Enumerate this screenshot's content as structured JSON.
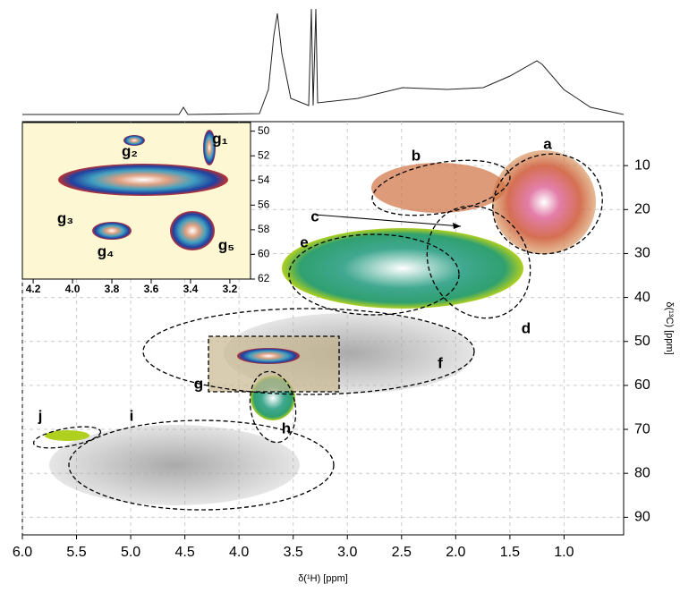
{
  "chart_data": [
    {
      "type": "hsqc",
      "xlabel": "δ(¹H) [ppm]",
      "ylabel": "δ(¹³C) [ppm]",
      "xlim": [
        6.0,
        0.45
      ],
      "ylim": [
        0,
        94
      ],
      "xticks": [
        {
          "value": 6.0,
          "label": "6.0"
        },
        5.5,
        {
          "value": 5.0,
          "label": "5.0"
        },
        4.5,
        {
          "value": 4.0,
          "label": "4.0"
        },
        3.5,
        {
          "value": 3.0,
          "label": "3.0"
        },
        2.5,
        {
          "value": 2.0,
          "label": "2.0"
        },
        1.5,
        {
          "value": 1.0,
          "label": "1.0"
        }
      ],
      "yticks": [
        10,
        20,
        30,
        40,
        50,
        60,
        70,
        80,
        90
      ],
      "grid": true,
      "annotations": [
        "a",
        "b",
        "c",
        "d",
        "e",
        "f",
        "g",
        "h",
        "i",
        "j"
      ]
    },
    {
      "type": "hsqc",
      "xlim": [
        4.255,
        3.095
      ],
      "ylim": [
        49.3,
        62
      ],
      "xticks": [
        4.2,
        {
          "value": 4.0,
          "label": "4.0"
        },
        3.8,
        3.6,
        3.4,
        3.2
      ],
      "yticks": [
        50,
        52,
        54,
        56,
        58,
        60,
        62
      ],
      "annotations": [
        "g₁",
        "g₂",
        "g₃",
        "g₄",
        "g₅"
      ]
    }
  ]
}
